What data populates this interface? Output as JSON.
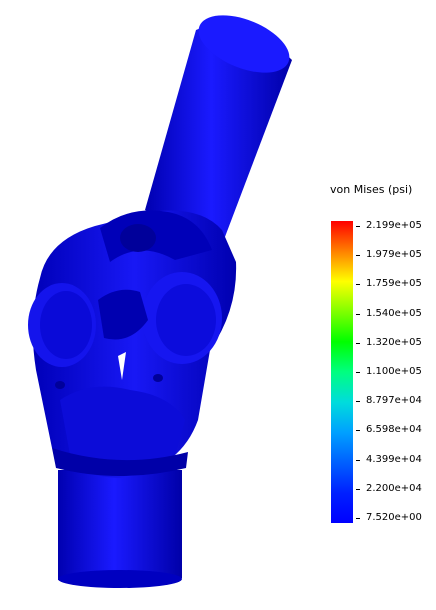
{
  "legend": {
    "title": "von Mises (psi)",
    "labels": [
      "2.199e+05",
      "1.979e+05",
      "1.759e+05",
      "1.540e+05",
      "1.320e+05",
      "1.100e+05",
      "8.797e+04",
      "6.598e+04",
      "4.399e+04",
      "2.200e+04",
      "7.520e+00"
    ],
    "colors": [
      "#ff0000",
      "#ff8000",
      "#ffff00",
      "#80ff00",
      "#00ff00",
      "#00ff80",
      "#00c8c8",
      "#00a0ff",
      "#0060ff",
      "#0020ff",
      "#0000ff"
    ]
  },
  "model": {
    "body_color": "#1010e0",
    "dark_color": "#0000a0"
  }
}
